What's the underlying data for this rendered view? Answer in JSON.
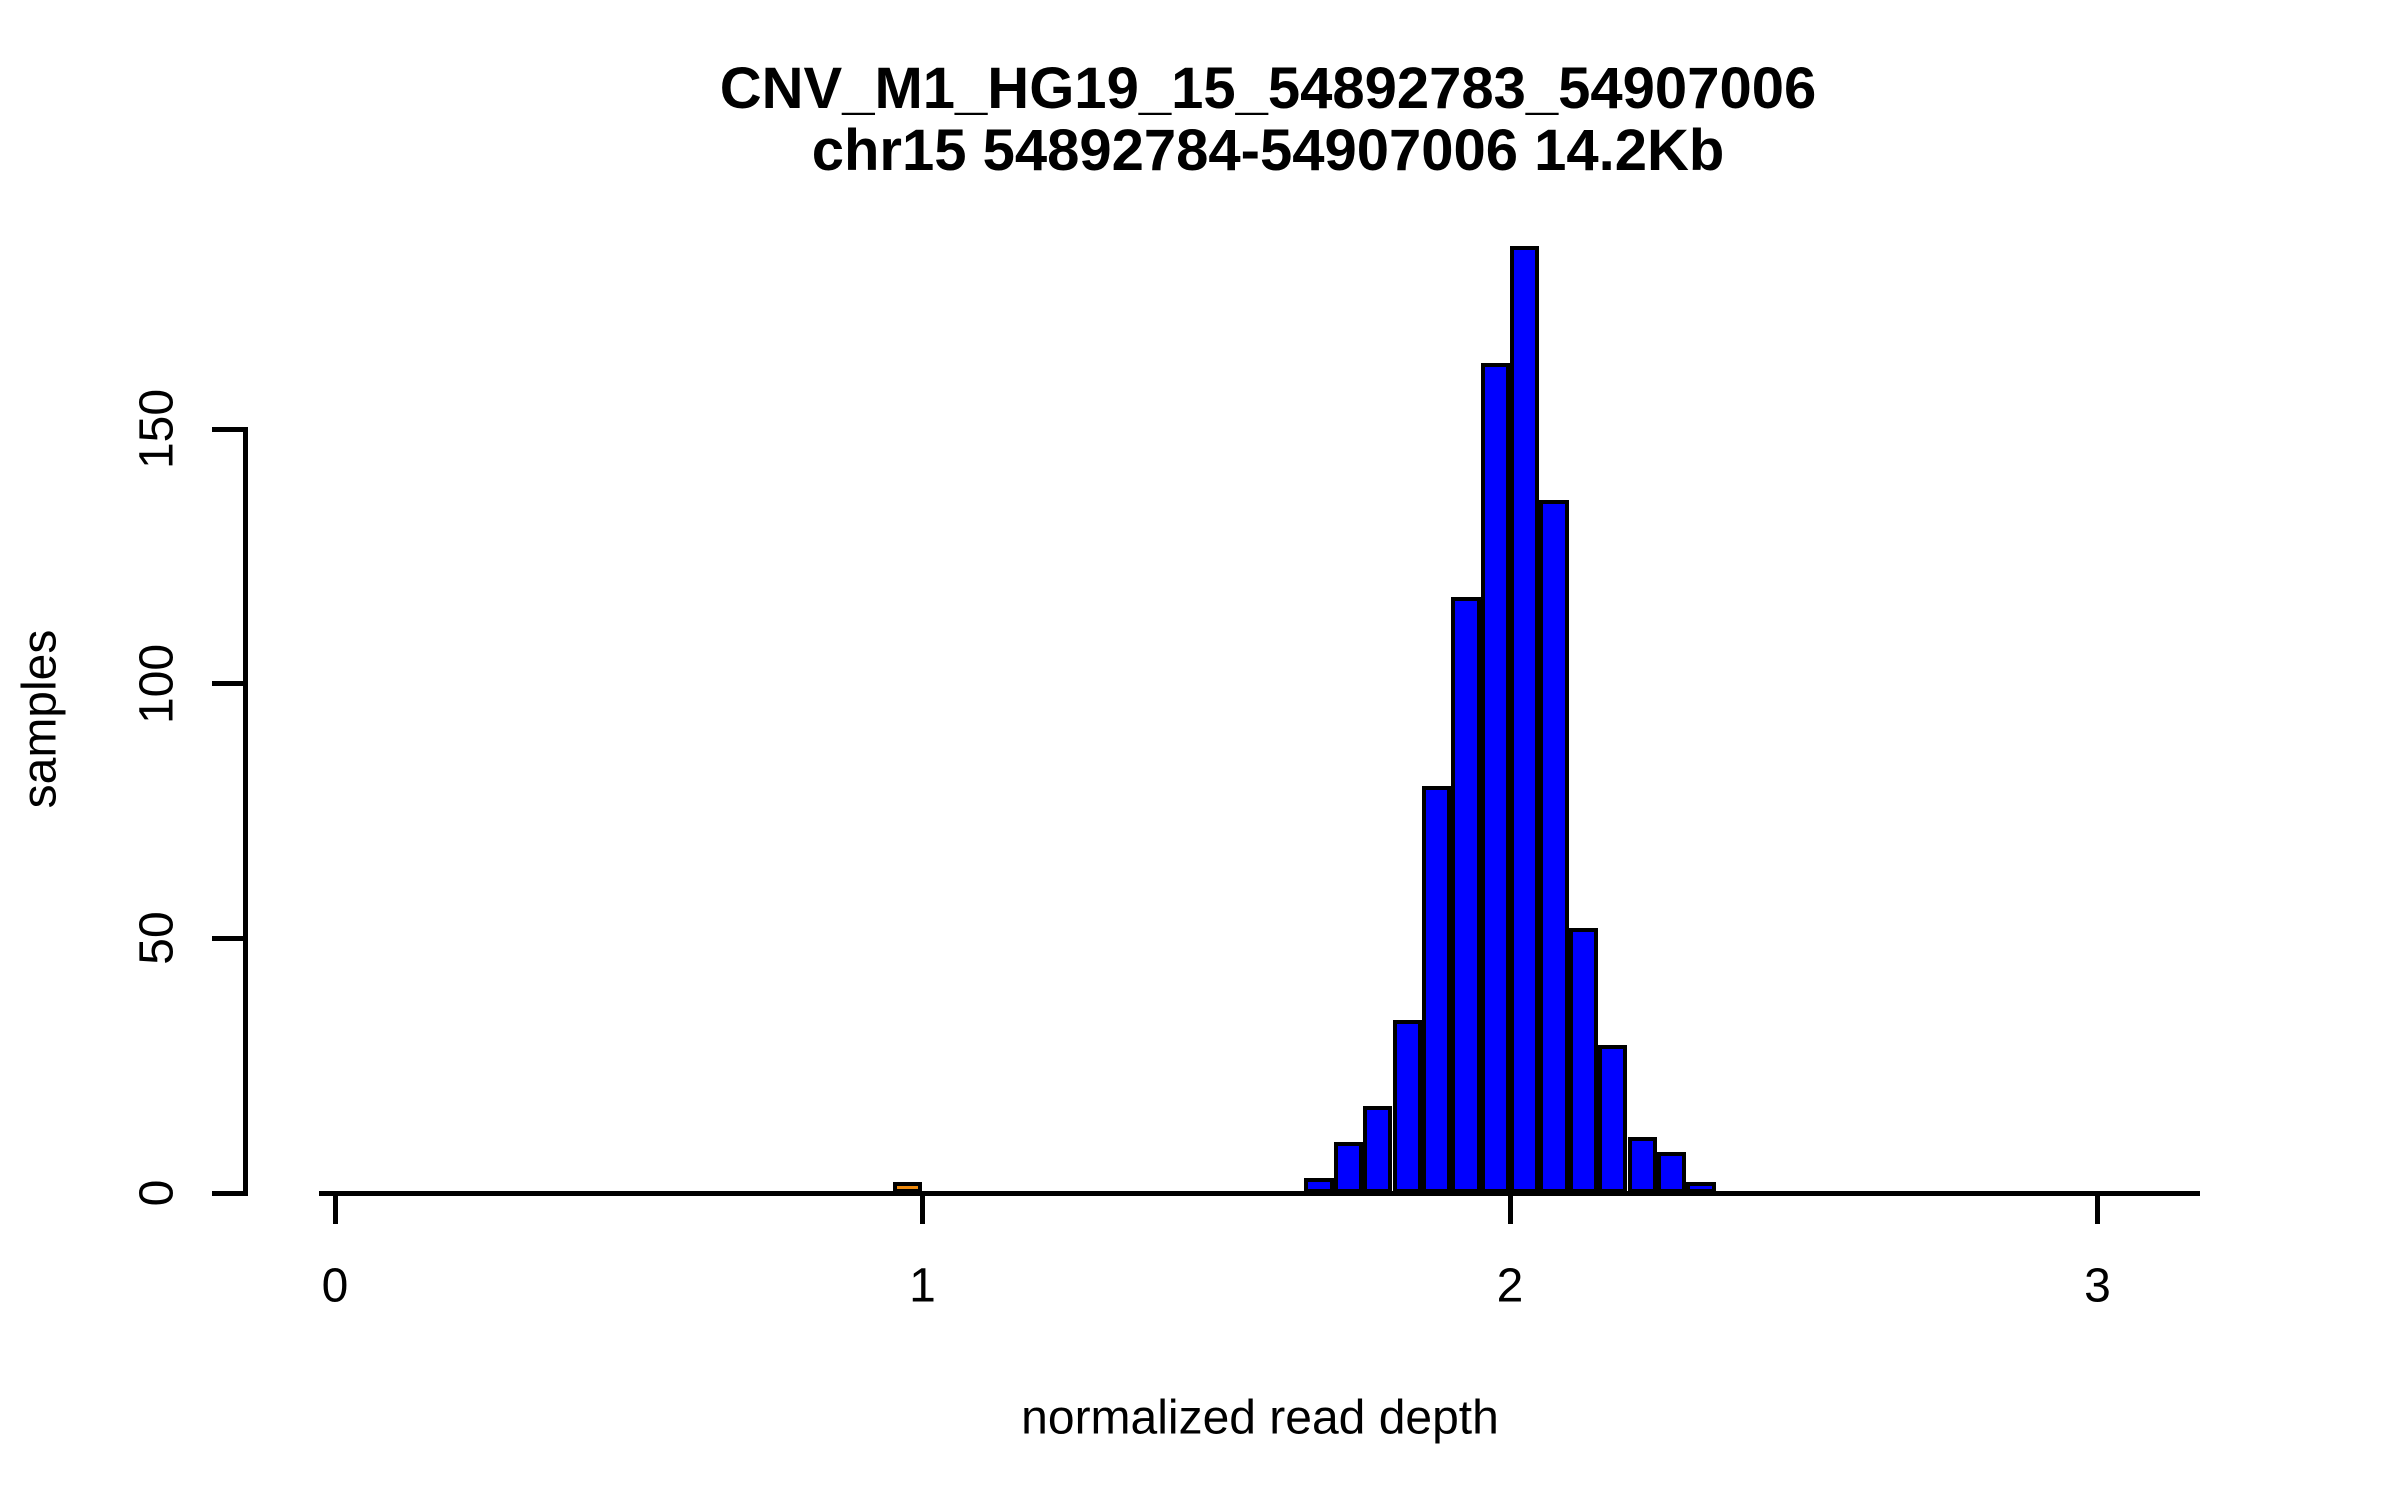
{
  "title": {
    "line1": "CNV_M1_HG19_15_54892783_54907006",
    "line2": "chr15 54892784-54907006 14.2Kb"
  },
  "chart_data": {
    "type": "bar",
    "subtype": "histogram",
    "title": "CNV_M1_HG19_15_54892783_54907006",
    "subtitle": "chr15 54892784-54907006 14.2Kb",
    "xlabel": "normalized read depth",
    "ylabel": "samples",
    "x_ticks": [
      {
        "value": 0,
        "label": "0"
      },
      {
        "value": 1,
        "label": "1"
      },
      {
        "value": 2,
        "label": "2"
      },
      {
        "value": 3,
        "label": "3"
      }
    ],
    "y_ticks": [
      {
        "value": 0,
        "label": "0"
      },
      {
        "value": 50,
        "label": "50"
      },
      {
        "value": 100,
        "label": "100"
      },
      {
        "value": 150,
        "label": "150"
      }
    ],
    "xlim": [
      -0.03,
      3.18
    ],
    "ylim": [
      0,
      186
    ],
    "grid": false,
    "legend": "none",
    "bin_width": 0.05,
    "background_color": "#FFFFFF",
    "axis_color": "#000000",
    "bar_border_color": "#000000",
    "series": [
      {
        "name": "main-distribution",
        "color": "#0000FF",
        "bins": [
          {
            "x0": 1.65,
            "x1": 1.7,
            "count": 3
          },
          {
            "x0": 1.7,
            "x1": 1.75,
            "count": 10
          },
          {
            "x0": 1.75,
            "x1": 1.8,
            "count": 17
          },
          {
            "x0": 1.8,
            "x1": 1.85,
            "count": 34
          },
          {
            "x0": 1.85,
            "x1": 1.9,
            "count": 80
          },
          {
            "x0": 1.9,
            "x1": 1.95,
            "count": 117
          },
          {
            "x0": 1.95,
            "x1": 2.0,
            "count": 163
          },
          {
            "x0": 2.0,
            "x1": 2.05,
            "count": 186
          },
          {
            "x0": 2.05,
            "x1": 2.1,
            "count": 136
          },
          {
            "x0": 2.1,
            "x1": 2.15,
            "count": 52
          },
          {
            "x0": 2.15,
            "x1": 2.2,
            "count": 29
          },
          {
            "x0": 2.2,
            "x1": 2.25,
            "count": 11
          },
          {
            "x0": 2.25,
            "x1": 2.3,
            "count": 8
          },
          {
            "x0": 2.3,
            "x1": 2.35,
            "count": 2
          }
        ]
      },
      {
        "name": "highlighted-bin",
        "color": "#EE8A0E",
        "bins": [
          {
            "x0": 0.95,
            "x1": 1.0,
            "count": 1
          }
        ]
      }
    ]
  }
}
